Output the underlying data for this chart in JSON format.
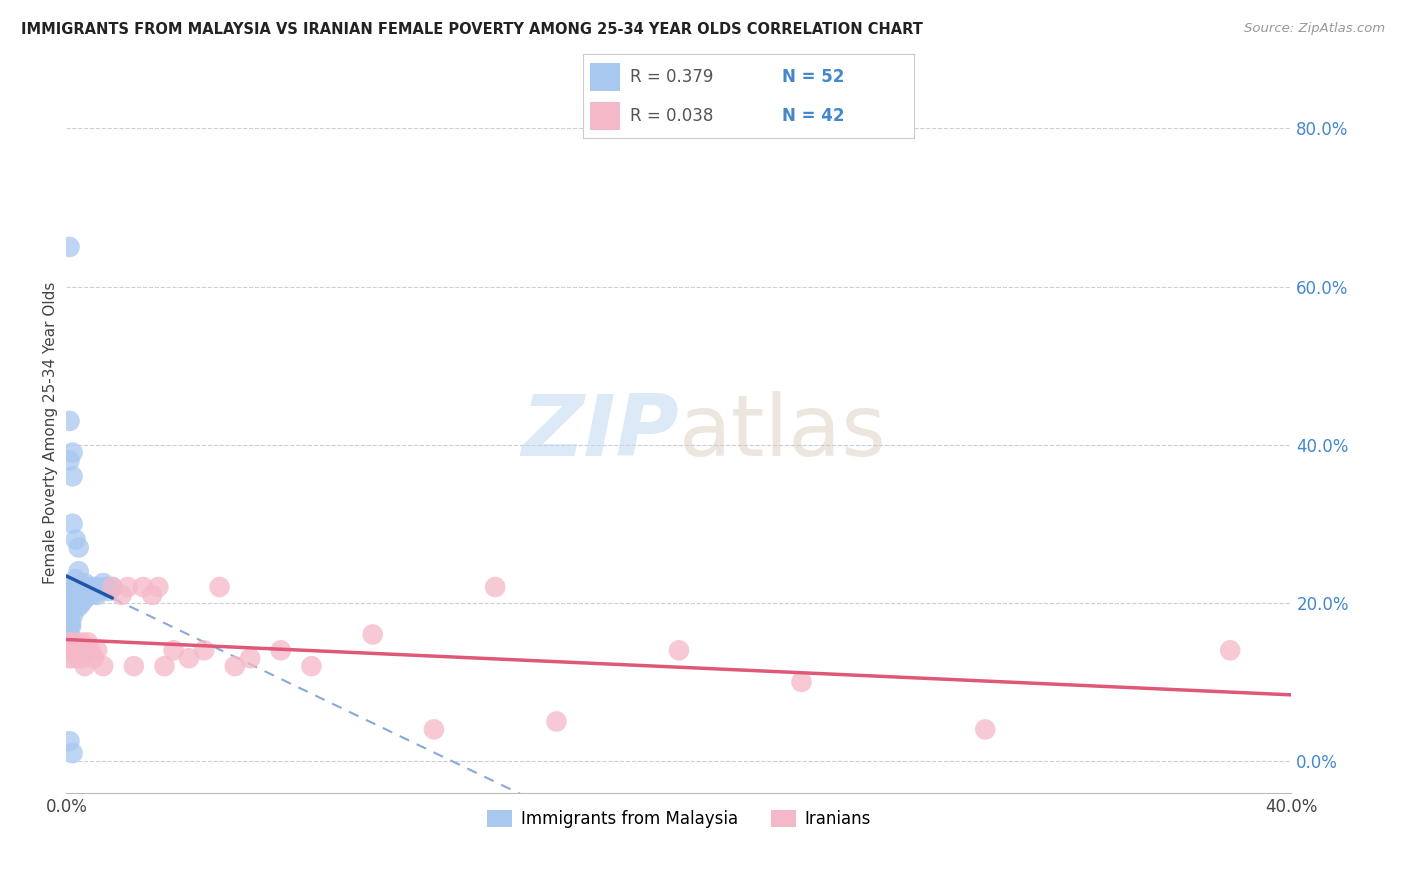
{
  "title": "IMMIGRANTS FROM MALAYSIA VS IRANIAN FEMALE POVERTY AMONG 25-34 YEAR OLDS CORRELATION CHART",
  "source": "Source: ZipAtlas.com",
  "ylabel": "Female Poverty Among 25-34 Year Olds",
  "color_malaysia": "#a8c8f0",
  "color_iran": "#f5b8c8",
  "color_malaysia_line": "#2255aa",
  "color_malaysia_dash": "#88aad8",
  "color_iran_line": "#e05878",
  "color_grid": "#ccccdd",
  "color_tick_right": "#4488cc",
  "xmin": 0.0,
  "xmax": 0.4,
  "ymin": -0.04,
  "ymax": 0.87,
  "yticks": [
    0.0,
    0.2,
    0.4,
    0.6,
    0.8
  ],
  "ytick_labels": [
    "0.0%",
    "20.0%",
    "40.0%",
    "60.0%",
    "80.0%"
  ],
  "malaysia_x": [
    0.001,
    0.0008,
    0.001,
    0.001,
    0.0015,
    0.0012,
    0.0005,
    0.002,
    0.0018,
    0.002,
    0.0022,
    0.002,
    0.0015,
    0.003,
    0.003,
    0.003,
    0.003,
    0.003,
    0.004,
    0.004,
    0.004,
    0.004,
    0.005,
    0.005,
    0.005,
    0.006,
    0.006,
    0.006,
    0.007,
    0.007,
    0.008,
    0.008,
    0.009,
    0.009,
    0.01,
    0.01,
    0.011,
    0.012,
    0.013,
    0.014,
    0.015,
    0.001,
    0.001,
    0.002,
    0.002,
    0.001,
    0.002,
    0.003,
    0.004,
    0.001,
    0.002
  ],
  "malaysia_y": [
    0.17,
    0.18,
    0.19,
    0.16,
    0.17,
    0.175,
    0.165,
    0.2,
    0.21,
    0.22,
    0.185,
    0.195,
    0.175,
    0.23,
    0.22,
    0.21,
    0.205,
    0.195,
    0.24,
    0.215,
    0.205,
    0.195,
    0.22,
    0.21,
    0.2,
    0.225,
    0.215,
    0.205,
    0.22,
    0.21,
    0.215,
    0.21,
    0.22,
    0.215,
    0.22,
    0.21,
    0.215,
    0.225,
    0.22,
    0.215,
    0.22,
    0.43,
    0.38,
    0.36,
    0.39,
    0.65,
    0.3,
    0.28,
    0.27,
    0.025,
    0.01
  ],
  "iran_x": [
    0.001,
    0.001,
    0.001,
    0.002,
    0.002,
    0.003,
    0.003,
    0.004,
    0.004,
    0.005,
    0.005,
    0.006,
    0.006,
    0.007,
    0.008,
    0.009,
    0.01,
    0.012,
    0.015,
    0.018,
    0.02,
    0.022,
    0.025,
    0.028,
    0.03,
    0.032,
    0.035,
    0.04,
    0.045,
    0.05,
    0.055,
    0.06,
    0.07,
    0.08,
    0.1,
    0.12,
    0.14,
    0.16,
    0.2,
    0.24,
    0.3,
    0.38
  ],
  "iran_y": [
    0.14,
    0.15,
    0.13,
    0.14,
    0.13,
    0.15,
    0.14,
    0.13,
    0.14,
    0.15,
    0.13,
    0.14,
    0.12,
    0.15,
    0.14,
    0.13,
    0.14,
    0.12,
    0.22,
    0.21,
    0.22,
    0.12,
    0.22,
    0.21,
    0.22,
    0.12,
    0.14,
    0.13,
    0.14,
    0.22,
    0.12,
    0.13,
    0.14,
    0.12,
    0.16,
    0.04,
    0.22,
    0.05,
    0.14,
    0.1,
    0.04,
    0.14
  ],
  "legend_text_color": "#4488cc",
  "legend_label_color": "#555555"
}
